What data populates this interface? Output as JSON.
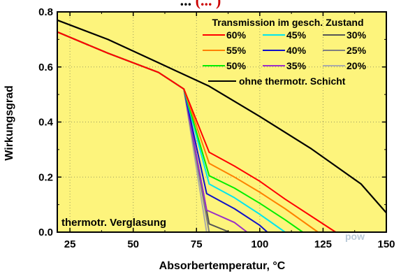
{
  "chart_data": {
    "type": "line",
    "title_partial_left": "... ",
    "title_partial_highlight": "(... )",
    "xlabel": "Absorbertemperatur, °C",
    "ylabel": "Wirkungsgrad",
    "xlim": [
      20,
      150
    ],
    "ylim": [
      0,
      0.8
    ],
    "xticks": [
      25,
      50,
      75,
      100,
      125,
      150
    ],
    "yticks": [
      0.0,
      0.2,
      0.4,
      0.6,
      0.8
    ],
    "ytick_labels": [
      "0.0",
      "0.2",
      "0.4",
      "0.6",
      "0.8"
    ],
    "grid": true,
    "background": "#fdf47c",
    "legend_title": "Transmission im gesch. Zustand",
    "legend_position": "top-right",
    "annotation": "thermotr. Verglasung",
    "series": [
      {
        "name": "ohne thermotr. Schicht",
        "color": "#000000",
        "x": [
          20,
          40,
          60,
          80,
          100,
          120,
          140,
          150
        ],
        "y": [
          0.77,
          0.7,
          0.615,
          0.53,
          0.42,
          0.305,
          0.175,
          0.07
        ]
      },
      {
        "name": "60%",
        "color": "#ff0000",
        "x": [
          20,
          40,
          60,
          70,
          80,
          90,
          100,
          110,
          120,
          130
        ],
        "y": [
          0.727,
          0.65,
          0.58,
          0.52,
          0.29,
          0.24,
          0.185,
          0.12,
          0.06,
          0.0
        ]
      },
      {
        "name": "55%",
        "color": "#ff8000",
        "x": [
          20,
          40,
          60,
          70,
          80,
          90,
          100,
          110,
          123
        ],
        "y": [
          0.727,
          0.65,
          0.58,
          0.52,
          0.25,
          0.2,
          0.145,
          0.085,
          0.0
        ]
      },
      {
        "name": "50%",
        "color": "#00ee00",
        "x": [
          20,
          40,
          60,
          70,
          80,
          90,
          100,
          110,
          117
        ],
        "y": [
          0.727,
          0.65,
          0.58,
          0.52,
          0.205,
          0.16,
          0.105,
          0.045,
          0.0
        ]
      },
      {
        "name": "45%",
        "color": "#00e5ee",
        "x": [
          20,
          40,
          60,
          70,
          80,
          90,
          100,
          110
        ],
        "y": [
          0.727,
          0.65,
          0.58,
          0.52,
          0.175,
          0.125,
          0.065,
          0.0
        ]
      },
      {
        "name": "40%",
        "color": "#1010c8",
        "x": [
          20,
          40,
          60,
          70,
          79,
          90,
          100,
          103
        ],
        "y": [
          0.727,
          0.65,
          0.58,
          0.52,
          0.14,
          0.085,
          0.025,
          0.0
        ]
      },
      {
        "name": "35%",
        "color": "#9a2fc8",
        "x": [
          20,
          40,
          60,
          70,
          79,
          90,
          95
        ],
        "y": [
          0.727,
          0.65,
          0.58,
          0.52,
          0.08,
          0.035,
          0.0
        ]
      },
      {
        "name": "30%",
        "color": "#555555",
        "x": [
          20,
          40,
          60,
          70,
          80,
          88
        ],
        "y": [
          0.727,
          0.65,
          0.58,
          0.52,
          0.03,
          0.0
        ]
      },
      {
        "name": "25%",
        "color": "#808080",
        "x": [
          20,
          40,
          60,
          70,
          80
        ],
        "y": [
          0.727,
          0.65,
          0.58,
          0.52,
          0.0
        ]
      },
      {
        "name": "20%",
        "color": "#aaaaaa",
        "x": [
          20,
          40,
          60,
          70,
          79
        ],
        "y": [
          0.727,
          0.65,
          0.58,
          0.52,
          0.0
        ]
      }
    ],
    "legend_rows": [
      [
        "60%",
        "45%",
        "30%"
      ],
      [
        "55%",
        "40%",
        "25%"
      ],
      [
        "50%",
        "35%",
        "20%"
      ]
    ],
    "legend_full": "ohne thermotr. Schicht"
  },
  "watermark": "pow"
}
